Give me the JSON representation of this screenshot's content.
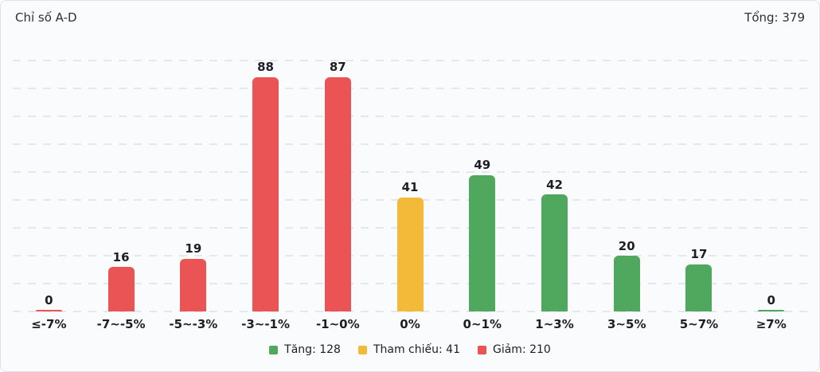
{
  "header": {
    "title": "Chỉ số A-D",
    "total_label": "Tổng: 379"
  },
  "chart_data": {
    "type": "bar",
    "title": "Chỉ số A-D",
    "categories": [
      "≤-7%",
      "-7~-5%",
      "-5~-3%",
      "-3~-1%",
      "-1~0%",
      "0%",
      "0~1%",
      "1~3%",
      "3~5%",
      "5~7%",
      "≥7%"
    ],
    "values": [
      0,
      16,
      19,
      88,
      87,
      41,
      49,
      42,
      20,
      17,
      0
    ],
    "groups": [
      "down",
      "down",
      "down",
      "down",
      "down",
      "reference",
      "up",
      "up",
      "up",
      "up",
      "up"
    ],
    "palette": {
      "up": "#4fa85e",
      "reference": "#f3ba3a",
      "down": "#ea5455"
    },
    "xlabel": "",
    "ylabel": "",
    "ylim": [
      0,
      90
    ],
    "grid_step": 10,
    "grid": "dashed-horizontal",
    "legend_position": "bottom",
    "totals": {
      "up": 128,
      "reference": 41,
      "down": 210,
      "all": 379
    }
  },
  "legend": [
    {
      "label": "Tăng: 128",
      "color": "#4fa85e"
    },
    {
      "label": "Tham chiếu: 41",
      "color": "#f3ba3a"
    },
    {
      "label": "Giảm: 210",
      "color": "#ea5455"
    }
  ]
}
